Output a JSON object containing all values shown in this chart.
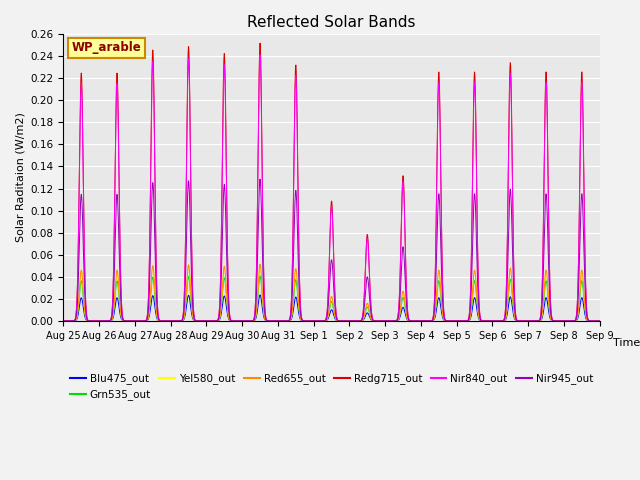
{
  "title": "Reflected Solar Bands",
  "xlabel": "Time",
  "ylabel": "Solar Raditaion (W/m2)",
  "ylim": [
    0.0,
    0.26
  ],
  "plot_bg": "#e8e8e8",
  "fig_bg": "#f2f2f2",
  "legend_label": "WP_arable",
  "legend_box_facecolor": "#ffff99",
  "legend_box_edgecolor": "#cc8800",
  "series_order": [
    "Blu475_out",
    "Grn535_out",
    "Yel580_out",
    "Red655_out",
    "Redg715_out",
    "Nir840_out",
    "Nir945_out"
  ],
  "series": {
    "Blu475_out": {
      "color": "#0000ff",
      "peak": 0.022
    },
    "Grn535_out": {
      "color": "#00dd00",
      "peak": 0.038
    },
    "Yel580_out": {
      "color": "#ffff00",
      "peak": 0.048
    },
    "Red655_out": {
      "color": "#ff8800",
      "peak": 0.048
    },
    "Redg715_out": {
      "color": "#dd0000",
      "peak": 0.235
    },
    "Nir840_out": {
      "color": "#ff00ff",
      "peak": 0.225
    },
    "Nir945_out": {
      "color": "#9900bb",
      "peak": 0.12
    }
  },
  "n_days": 15,
  "ppd": 300,
  "day_peaks": [
    0.215,
    0.215,
    0.235,
    0.238,
    0.232,
    0.241,
    0.222,
    0.104,
    0.075,
    0.126,
    0.216,
    0.216,
    0.224,
    0.216,
    0.216
  ],
  "tick_labels": [
    "Aug 25",
    "Aug 26",
    "Aug 27",
    "Aug 28",
    "Aug 29",
    "Aug 30",
    "Aug 31",
    "Sep 1",
    "Sep 2",
    "Sep 3",
    "Sep 4",
    "Sep 5",
    "Sep 6",
    "Sep 7",
    "Sep 8",
    "Sep 9"
  ]
}
